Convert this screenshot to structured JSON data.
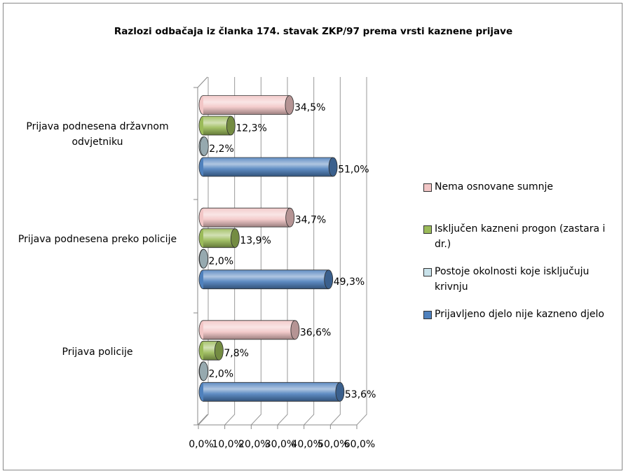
{
  "chart_data": {
    "type": "bar",
    "orientation": "horizontal",
    "style": "3d-cylinder",
    "title": "Razlozi odbačaja iz članka 174. stavak ZKP/97 prema vrsti kaznene prijave",
    "categories": [
      "Prijava podnesena državnom odvjetniku",
      "Prijava podnesena preko policije",
      "Prijava policije"
    ],
    "series": [
      {
        "name": "Nema osnovane sumnje",
        "color": "#f2c6c6",
        "values": [
          34.5,
          34.7,
          36.6
        ],
        "value_labels": [
          "34,5%",
          "34,7%",
          "36,6%"
        ]
      },
      {
        "name": "Isključen kazneni progon (zastara i dr.)",
        "color": "#9bbb59",
        "values": [
          12.3,
          13.9,
          7.8
        ],
        "value_labels": [
          "12,3%",
          "13,9%",
          "7,8%"
        ]
      },
      {
        "name": "Postoje okolnosti koje isključuju krivnju",
        "color": "#c8e2ea",
        "values": [
          2.2,
          2.0,
          2.0
        ],
        "value_labels": [
          "2,2%",
          "2,0%",
          "2,0%"
        ]
      },
      {
        "name": "Prijavljeno djelo nije kazneno djelo",
        "color": "#4f81bd",
        "values": [
          51.0,
          49.3,
          53.6
        ],
        "value_labels": [
          "51,0%",
          "49,3%",
          "53,6%"
        ]
      }
    ],
    "xlim": [
      0,
      60
    ],
    "xticks": [
      {
        "value": 0,
        "label": "0,0%"
      },
      {
        "value": 10,
        "label": "10,0%"
      },
      {
        "value": 20,
        "label": "20,0%"
      },
      {
        "value": 30,
        "label": "30,0%"
      },
      {
        "value": 40,
        "label": "40,0%"
      },
      {
        "value": 50,
        "label": "50,0%"
      },
      {
        "value": 60,
        "label": "60,0%"
      }
    ],
    "grid": true,
    "legend": "right"
  }
}
